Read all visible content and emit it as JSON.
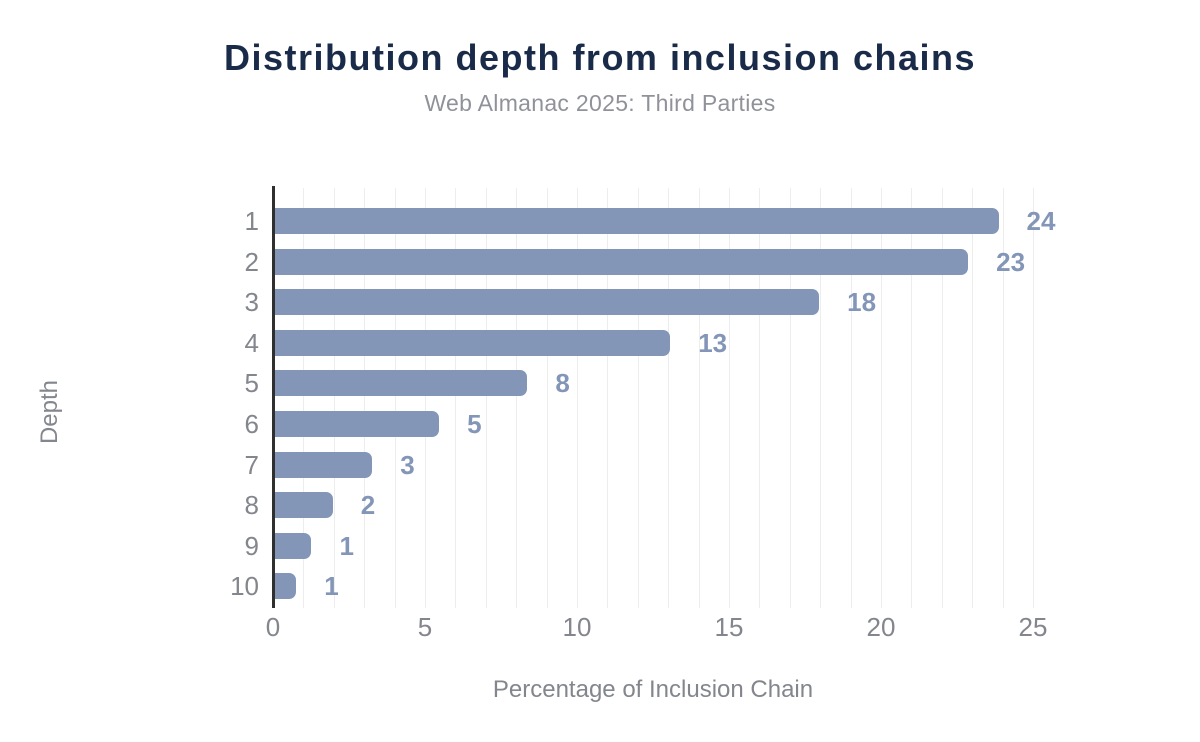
{
  "header": {
    "title": "Distribution depth from inclusion chains",
    "subtitle": "Web Almanac 2025: Third Parties"
  },
  "chart_data": {
    "type": "bar",
    "orientation": "horizontal",
    "title": "Distribution depth from inclusion chains",
    "subtitle": "Web Almanac 2025: Third Parties",
    "xlabel": "Percentage of Inclusion Chain",
    "ylabel": "Depth",
    "categories": [
      "1",
      "2",
      "3",
      "4",
      "5",
      "6",
      "7",
      "8",
      "9",
      "10"
    ],
    "values": [
      24,
      23,
      18,
      13,
      8,
      5,
      3,
      2,
      1,
      1
    ],
    "value_labels": [
      "24",
      "23",
      "18",
      "13",
      "8",
      "5",
      "3",
      "2",
      "1",
      "1"
    ],
    "bar_lengths_pct": [
      23.8,
      22.8,
      17.9,
      13.0,
      8.3,
      5.4,
      3.2,
      1.9,
      1.2,
      0.7
    ],
    "xlim": [
      0,
      25
    ],
    "x_ticks": [
      0,
      5,
      10,
      15,
      20,
      25
    ],
    "gridline_interval": 1,
    "grid": "vertical",
    "legend": "none",
    "colors": {
      "background": "#ffffff",
      "bar": "#8396b7",
      "value_label": "#8396b7",
      "title": "#1a2b49",
      "subtitle": "#8f9299",
      "axis_text": "#83868d",
      "axis_line": "#2f2f2f",
      "gridline": "#ededed"
    }
  }
}
